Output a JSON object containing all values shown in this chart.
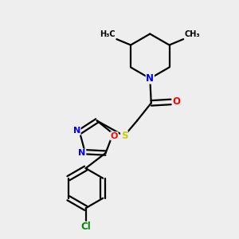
{
  "bg_color": "#eeeeee",
  "bond_color": "#000000",
  "bond_width": 1.6,
  "atom_colors": {
    "N": "#0000ff",
    "O": "#ff0000",
    "S": "#cccc00",
    "Cl": "#008800",
    "C": "#000000"
  },
  "font_size": 8.5,
  "xlim": [
    0,
    10
  ],
  "ylim": [
    0,
    10
  ]
}
